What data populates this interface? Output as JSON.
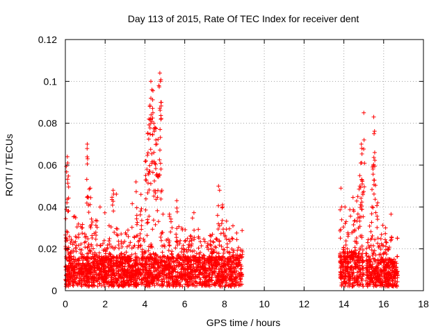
{
  "chart_data": {
    "type": "scatter",
    "title": "Day 113 of 2015, Rate Of TEC Index for receiver dent",
    "xlabel": "GPS time / hours",
    "ylabel": "ROTI / TECUs",
    "xlim": [
      0,
      18
    ],
    "ylim": [
      0,
      0.12
    ],
    "xticks": [
      "0",
      "2",
      "4",
      "6",
      "8",
      "10",
      "12",
      "14",
      "16",
      "18"
    ],
    "yticks": [
      "0",
      "0.02",
      "0.04",
      "0.06",
      "0.08",
      "0.1",
      "0.12"
    ],
    "grid": true,
    "marker": "+",
    "color": "#ff0000",
    "series": [
      {
        "name": "ROTI",
        "segments": [
          {
            "x_start": 0.0,
            "x_end": 8.9,
            "base": 0.012,
            "spread": 0.02
          },
          {
            "x_start": 13.8,
            "x_end": 15.0,
            "base": 0.014,
            "spread": 0.022
          },
          {
            "x_start": 15.1,
            "x_end": 16.7,
            "base": 0.011,
            "spread": 0.016
          }
        ],
        "peaks": [
          {
            "x": 0.1,
            "y": 0.064
          },
          {
            "x": 0.12,
            "y": 0.061
          },
          {
            "x": 0.08,
            "y": 0.042
          },
          {
            "x": 1.1,
            "y": 0.07
          },
          {
            "x": 1.12,
            "y": 0.063
          },
          {
            "x": 1.25,
            "y": 0.049
          },
          {
            "x": 2.4,
            "y": 0.048
          },
          {
            "x": 3.55,
            "y": 0.052
          },
          {
            "x": 3.8,
            "y": 0.046
          },
          {
            "x": 4.05,
            "y": 0.062
          },
          {
            "x": 4.1,
            "y": 0.058
          },
          {
            "x": 4.15,
            "y": 0.075
          },
          {
            "x": 4.2,
            "y": 0.082
          },
          {
            "x": 4.25,
            "y": 0.088
          },
          {
            "x": 4.3,
            "y": 0.1
          },
          {
            "x": 4.35,
            "y": 0.096
          },
          {
            "x": 4.4,
            "y": 0.085
          },
          {
            "x": 4.45,
            "y": 0.08
          },
          {
            "x": 4.55,
            "y": 0.072
          },
          {
            "x": 4.6,
            "y": 0.07
          },
          {
            "x": 4.7,
            "y": 0.098
          },
          {
            "x": 4.75,
            "y": 0.104
          },
          {
            "x": 4.78,
            "y": 0.1
          },
          {
            "x": 4.8,
            "y": 0.09
          },
          {
            "x": 4.85,
            "y": 0.048
          },
          {
            "x": 4.3,
            "y": 0.092
          },
          {
            "x": 4.5,
            "y": 0.078
          },
          {
            "x": 5.6,
            "y": 0.043
          },
          {
            "x": 7.7,
            "y": 0.05
          },
          {
            "x": 7.9,
            "y": 0.041
          },
          {
            "x": 13.85,
            "y": 0.049
          },
          {
            "x": 14.5,
            "y": 0.038
          },
          {
            "x": 14.7,
            "y": 0.045
          },
          {
            "x": 14.8,
            "y": 0.055
          },
          {
            "x": 14.85,
            "y": 0.061
          },
          {
            "x": 14.9,
            "y": 0.068
          },
          {
            "x": 14.88,
            "y": 0.07
          },
          {
            "x": 15.0,
            "y": 0.085
          },
          {
            "x": 15.5,
            "y": 0.083
          },
          {
            "x": 15.52,
            "y": 0.075
          },
          {
            "x": 15.55,
            "y": 0.066
          },
          {
            "x": 15.45,
            "y": 0.059
          },
          {
            "x": 15.7,
            "y": 0.042
          },
          {
            "x": 16.1,
            "y": 0.03
          }
        ]
      }
    ]
  }
}
